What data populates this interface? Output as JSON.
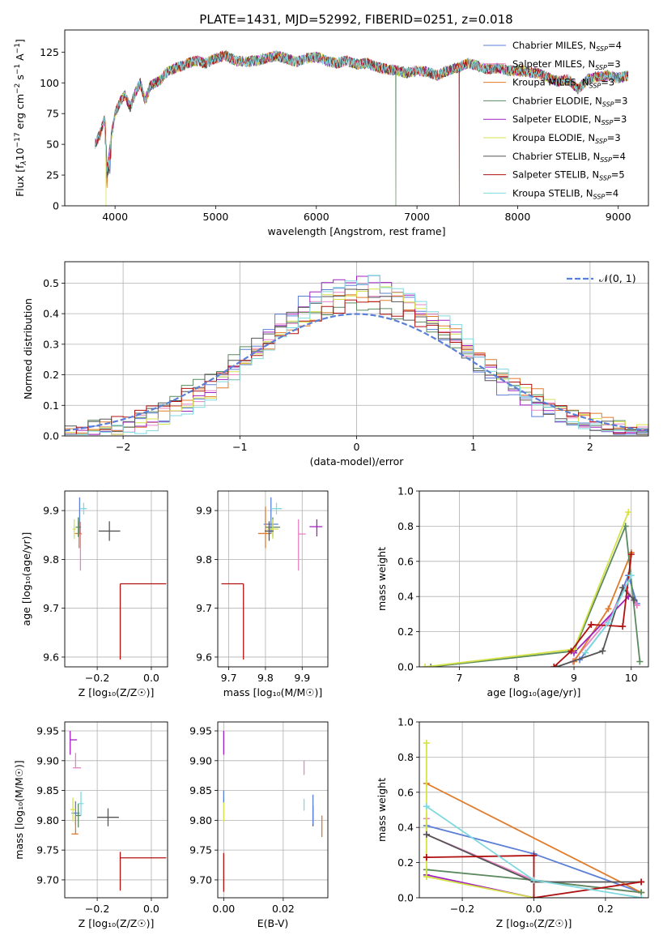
{
  "figure_title": "PLATE=1431, MJD=52992, FIBERID=0251, z=0.018",
  "colors": {
    "Chabrier MILES": "#5b7fd6",
    "Salpeter MILES": "#e882c4",
    "Kroupa MILES": "#e07b2a",
    "Chabrier ELODIE": "#5a8a5e",
    "Salpeter ELODIE": "#a020c0",
    "Kroupa ELODIE": "#d6e24a",
    "Chabrier STELIB": "#555555",
    "Salpeter STELIB": "#b01010",
    "Kroupa STELIB": "#7fd9e0",
    "normal": "#5b7fd6"
  },
  "chart_data": [
    {
      "id": "spectrum",
      "type": "line",
      "xlabel": "wavelength [Angstrom, rest frame]",
      "ylabel": "Flux [f",
      "ylabel_parts": [
        "Flux [f",
        "λ",
        "10",
        "−17",
        " erg cm",
        "−2",
        " s",
        "−1",
        " A",
        "−1",
        "]"
      ],
      "xlim": [
        3500,
        9300
      ],
      "ylim": [
        0,
        143
      ],
      "xticks": [
        4000,
        5000,
        6000,
        7000,
        8000,
        9000
      ],
      "yticks": [
        0,
        25,
        50,
        75,
        100,
        125
      ],
      "legend_loc": "upper right",
      "legend": [
        {
          "base": "Chabrier MILES, N",
          "sub": "SSP",
          "tail": "=4"
        },
        {
          "base": "Salpeter MILES, N",
          "sub": "SSP",
          "tail": "=3"
        },
        {
          "base": "Kroupa MILES, N",
          "sub": "SSP",
          "tail": "=3"
        },
        {
          "base": "Chabrier ELODIE, N",
          "sub": "SSP",
          "tail": "=3"
        },
        {
          "base": "Salpeter ELODIE, N",
          "sub": "SSP",
          "tail": "=3"
        },
        {
          "base": "Kroupa ELODIE, N",
          "sub": "SSP",
          "tail": "=3"
        },
        {
          "base": "Chabrier STELIB, N",
          "sub": "SSP",
          "tail": "=4"
        },
        {
          "base": "Salpeter STELIB, N",
          "sub": "SSP",
          "tail": "=5"
        },
        {
          "base": "Kroupa STELIB, N",
          "sub": "SSP",
          "tail": "=4"
        }
      ],
      "spectrum_x": [
        3800,
        3850,
        3900,
        3920,
        3950,
        4000,
        4050,
        4100,
        4150,
        4200,
        4250,
        4300,
        4350,
        4400,
        4450,
        4500,
        4600,
        4700,
        4800,
        4900,
        5000,
        5100,
        5200,
        5300,
        5400,
        5500,
        5600,
        5700,
        5800,
        5900,
        6000,
        6100,
        6200,
        6300,
        6400,
        6500,
        6600,
        6700,
        6800,
        6900,
        7000,
        7100,
        7200,
        7300,
        7400,
        7500,
        7600,
        7700,
        7800,
        7900,
        8000,
        8200,
        8400,
        8500,
        8600,
        8700,
        8800,
        8900,
        9000,
        9100
      ],
      "spectrum_y": [
        50,
        58,
        72,
        35,
        50,
        75,
        85,
        90,
        80,
        92,
        100,
        85,
        98,
        100,
        102,
        108,
        112,
        115,
        118,
        116,
        120,
        122,
        118,
        117,
        118,
        120,
        122,
        120,
        117,
        120,
        121,
        118,
        116,
        118,
        115,
        116,
        113,
        111,
        110,
        108,
        110,
        109,
        106,
        110,
        112,
        116,
        114,
        111,
        112,
        110,
        110,
        108,
        101,
        103,
        95,
        103,
        105,
        106,
        104,
        106
      ],
      "dips": [
        {
          "series": "Kroupa ELODIE",
          "x": 3910
        },
        {
          "series": "Chabrier ELODIE",
          "x": 6790
        },
        {
          "series": "Salpeter STELIB",
          "x": 7420
        }
      ]
    },
    {
      "id": "residuals",
      "type": "histogram",
      "xlabel": "(data-model)/error",
      "ylabel": "Normed distribution",
      "xlim": [
        -2.5,
        2.5
      ],
      "ylim": [
        0,
        0.57
      ],
      "xticks": [
        -2,
        -1,
        0,
        1,
        2
      ],
      "yticks": [
        0.0,
        0.1,
        0.2,
        0.3,
        0.4,
        0.5
      ],
      "legend_label": "𝒩(0, 1)",
      "bin_width": 0.1,
      "bin_start": -2.5
    },
    {
      "id": "Z_age",
      "type": "scatter",
      "xlabel": "Z [log₁₀(Z/Z☉)]",
      "ylabel": "age  [log₁₀(age/yr)]",
      "xlim": [
        -0.32,
        0.06
      ],
      "ylim": [
        9.58,
        9.94
      ],
      "xticks": [
        -0.2,
        0.0
      ],
      "xticklabels": [
        "−0.2",
        "0.0"
      ],
      "yticks": [
        9.6,
        9.7,
        9.8,
        9.9
      ],
      "points": [
        {
          "series": "Chabrier MILES",
          "x": -0.265,
          "y": 9.872,
          "xe": [
            0.005,
            0.005
          ],
          "ye": [
            0.02,
            0.055
          ]
        },
        {
          "series": "Salpeter MILES",
          "x": -0.262,
          "y": 9.852,
          "xe": [
            0.005,
            0.005
          ],
          "ye": [
            0.075,
            0.025
          ]
        },
        {
          "series": "Kroupa MILES",
          "x": -0.267,
          "y": 9.853,
          "xe": [
            0.015,
            0.008
          ],
          "ye": [
            0.03,
            0.025
          ]
        },
        {
          "series": "Chabrier ELODIE",
          "x": -0.27,
          "y": 9.866,
          "xe": [
            0.01,
            0.01
          ],
          "ye": [
            0.02,
            0.02
          ]
        },
        {
          "series": "Kroupa ELODIE",
          "x": -0.285,
          "y": 9.862,
          "xe": [
            0.006,
            0.006
          ],
          "ye": [
            0.02,
            0.02
          ]
        },
        {
          "series": "Chabrier STELIB",
          "x": -0.155,
          "y": 9.858,
          "xe": [
            0.04,
            0.04
          ],
          "ye": [
            0.02,
            0.02
          ]
        },
        {
          "series": "Salpeter STELIB",
          "x": -0.115,
          "y": 9.75,
          "xe": [
            0.0,
            0.17
          ],
          "ye": [
            0.155,
            0.0
          ]
        },
        {
          "series": "Kroupa STELIB",
          "x": -0.25,
          "y": 9.904,
          "xe": [
            0.012,
            0.012
          ],
          "ye": [
            0.012,
            0.012
          ]
        }
      ]
    },
    {
      "id": "mass_age",
      "type": "scatter",
      "xlabel": "mass [log₁₀(M/M☉)]",
      "ylabel": "",
      "xlim": [
        9.67,
        9.97
      ],
      "ylim": [
        9.58,
        9.94
      ],
      "xticks": [
        9.7,
        9.8,
        9.9
      ],
      "yticks": [
        9.6,
        9.7,
        9.8,
        9.9
      ],
      "points": [
        {
          "series": "Chabrier MILES",
          "x": 9.815,
          "y": 9.872,
          "xe": [
            0.02,
            0.02
          ],
          "ye": [
            0.02,
            0.055
          ]
        },
        {
          "series": "Salpeter MILES",
          "x": 9.89,
          "y": 9.852,
          "xe": [
            0.0,
            0.02
          ],
          "ye": [
            0.075,
            0.03
          ]
        },
        {
          "series": "Kroupa MILES",
          "x": 9.8,
          "y": 9.853,
          "xe": [
            0.02,
            0.015
          ],
          "ye": [
            0.03,
            0.055
          ]
        },
        {
          "series": "Chabrier ELODIE",
          "x": 9.82,
          "y": 9.866,
          "xe": [
            0.02,
            0.02
          ],
          "ye": [
            0.02,
            0.02
          ]
        },
        {
          "series": "Salpeter ELODIE",
          "x": 9.94,
          "y": 9.867,
          "xe": [
            0.02,
            0.015
          ],
          "ye": [
            0.02,
            0.015
          ]
        },
        {
          "series": "Kroupa ELODIE",
          "x": 9.82,
          "y": 9.862,
          "xe": [
            0.015,
            0.015
          ],
          "ye": [
            0.02,
            0.02
          ]
        },
        {
          "series": "Chabrier STELIB",
          "x": 9.81,
          "y": 9.858,
          "xe": [
            0.012,
            0.012
          ],
          "ye": [
            0.02,
            0.02
          ]
        },
        {
          "series": "Salpeter STELIB",
          "x": 9.74,
          "y": 9.75,
          "xe": [
            0.06,
            0.0
          ],
          "ye": [
            0.155,
            0.0
          ]
        },
        {
          "series": "Kroupa STELIB",
          "x": 9.83,
          "y": 9.904,
          "xe": [
            0.015,
            0.015
          ],
          "ye": [
            0.012,
            0.012
          ]
        }
      ]
    },
    {
      "id": "age_weight",
      "type": "line",
      "xlabel": "age  [log₁₀(age/yr)]",
      "ylabel": "mass weight",
      "xlim": [
        6.3,
        10.3
      ],
      "ylim": [
        0,
        1.0
      ],
      "xticks": [
        7,
        8,
        9,
        10
      ],
      "yticks": [
        0.0,
        0.2,
        0.4,
        0.6,
        0.8,
        1.0
      ],
      "series": [
        {
          "name": "Chabrier MILES",
          "x": [
            9.1,
            9.6,
            9.95,
            10.1
          ],
          "y": [
            0.04,
            0.25,
            0.52,
            0.36
          ]
        },
        {
          "name": "Salpeter MILES",
          "x": [
            8.98,
            9.6,
            9.9,
            10.1
          ],
          "y": [
            0.03,
            0.27,
            0.45,
            0.35
          ]
        },
        {
          "name": "Kroupa MILES",
          "x": [
            9.0,
            9.6,
            10.0
          ],
          "y": [
            0.03,
            0.33,
            0.65
          ]
        },
        {
          "name": "Chabrier ELODIE",
          "x": [
            6.5,
            9.0,
            9.9,
            10.15
          ],
          "y": [
            0.0,
            0.09,
            0.8,
            0.03
          ]
        },
        {
          "name": "Salpeter ELODIE",
          "x": [
            9.0,
            9.95
          ],
          "y": [
            0.08,
            0.4
          ]
        },
        {
          "name": "Kroupa ELODIE",
          "x": [
            6.4,
            9.0,
            9.95
          ],
          "y": [
            0.0,
            0.1,
            0.88
          ]
        },
        {
          "name": "Chabrier STELIB",
          "x": [
            8.7,
            9.5,
            9.85,
            10.05
          ],
          "y": [
            0.0,
            0.09,
            0.45,
            0.38
          ]
        },
        {
          "name": "Salpeter STELIB",
          "x": [
            8.65,
            8.95,
            9.3,
            9.85,
            10.0
          ],
          "y": [
            0.0,
            0.09,
            0.24,
            0.23,
            0.64
          ]
        },
        {
          "name": "Kroupa STELIB",
          "x": [
            9.2,
            9.6,
            10.0
          ],
          "y": [
            0.08,
            0.25,
            0.52
          ]
        }
      ]
    },
    {
      "id": "Z_mass",
      "type": "scatter",
      "xlabel": "Z [log₁₀(Z/Z☉)]",
      "ylabel": "mass [log₁₀(M/M☉)]",
      "xlim": [
        -0.32,
        0.06
      ],
      "ylim": [
        9.67,
        9.965
      ],
      "xticks": [
        -0.2,
        0.0
      ],
      "xticklabels": [
        "−0.2",
        "0.0"
      ],
      "yticks": [
        9.7,
        9.75,
        9.8,
        9.85,
        9.9,
        9.95
      ],
      "points": [
        {
          "series": "Chabrier MILES",
          "x": -0.28,
          "y": 9.812,
          "xe": [
            0.015,
            0.015
          ],
          "ye": [
            0.02,
            0.02
          ]
        },
        {
          "series": "Salpeter MILES",
          "x": -0.28,
          "y": 9.888,
          "xe": [
            0.01,
            0.02
          ],
          "ye": [
            0.0,
            0.025
          ]
        },
        {
          "series": "Kroupa MILES",
          "x": -0.28,
          "y": 9.777,
          "xe": [
            0.015,
            0.01
          ],
          "ye": [
            0.0,
            0.03
          ]
        },
        {
          "series": "Chabrier ELODIE",
          "x": -0.27,
          "y": 9.808,
          "xe": [
            0.01,
            0.01
          ],
          "ye": [
            0.02,
            0.02
          ]
        },
        {
          "series": "Salpeter ELODIE",
          "x": -0.3,
          "y": 9.935,
          "xe": [
            0.0,
            0.025
          ],
          "ye": [
            0.025,
            0.015
          ]
        },
        {
          "series": "Kroupa ELODIE",
          "x": -0.29,
          "y": 9.818,
          "xe": [
            0.01,
            0.01
          ],
          "ye": [
            0.02,
            0.02
          ]
        },
        {
          "series": "Chabrier STELIB",
          "x": -0.16,
          "y": 9.805,
          "xe": [
            0.04,
            0.04
          ],
          "ye": [
            0.015,
            0.015
          ]
        },
        {
          "series": "Salpeter STELIB",
          "x": -0.115,
          "y": 9.737,
          "xe": [
            0.0,
            0.17
          ],
          "ye": [
            0.055,
            0.01
          ]
        },
        {
          "series": "Kroupa STELIB",
          "x": -0.26,
          "y": 9.828,
          "xe": [
            0.01,
            0.01
          ],
          "ye": [
            0.02,
            0.02
          ]
        }
      ]
    },
    {
      "id": "ebv_mass",
      "type": "scatter",
      "xlabel": "E(B-V)",
      "ylabel": "",
      "xlim": [
        -0.002,
        0.035
      ],
      "ylim": [
        9.67,
        9.965
      ],
      "xticks": [
        0.0,
        0.02
      ],
      "xticklabels": [
        "0.00",
        "0.02"
      ],
      "yticks": [
        9.7,
        9.75,
        9.8,
        9.85,
        9.9,
        9.95
      ],
      "points": [
        {
          "series": "Salpeter ELODIE",
          "x": 0.0,
          "y": 9.935,
          "xe": [
            0,
            0
          ],
          "ye": [
            0.025,
            0.015
          ]
        },
        {
          "series": "Kroupa ELODIE",
          "x": 0.0,
          "y": 9.818,
          "xe": [
            0,
            0
          ],
          "ye": [
            0.02,
            0.02
          ]
        },
        {
          "series": "Salpeter STELIB",
          "x": 0.0,
          "y": 9.715,
          "xe": [
            0,
            0
          ],
          "ye": [
            0.035,
            0.03
          ]
        },
        {
          "series": "Chabrier MILES",
          "x": 0.0,
          "y": 9.84,
          "xe": [
            0,
            0
          ],
          "ye": [
            0.01,
            0.01
          ]
        },
        {
          "series": "Salpeter MILES",
          "x": 0.027,
          "y": 9.888,
          "xe": [
            0,
            0
          ],
          "ye": [
            0.012,
            0.012
          ]
        },
        {
          "series": "Kroupa STELIB",
          "x": 0.027,
          "y": 9.826,
          "xe": [
            0,
            0
          ],
          "ye": [
            0.01,
            0.01
          ]
        },
        {
          "series": "Chabrier STELIB",
          "x": 0.03,
          "y": 9.81,
          "xe": [
            0,
            0
          ],
          "ye": [
            0.02,
            0.015
          ]
        },
        {
          "series": "Chabrier MILES",
          "x": 0.03,
          "y": 9.818,
          "xe": [
            0,
            0
          ],
          "ye": [
            0.025,
            0.025
          ]
        },
        {
          "series": "Kroupa MILES",
          "x": 0.033,
          "y": 9.79,
          "xe": [
            0,
            0
          ],
          "ye": [
            0.018,
            0.018
          ]
        }
      ]
    },
    {
      "id": "Z_weight",
      "type": "line",
      "xlabel": "Z [log₁₀(Z/Z☉)]",
      "ylabel": "mass weight",
      "xlim": [
        -0.32,
        0.32
      ],
      "ylim": [
        0,
        1.0
      ],
      "xticks": [
        -0.2,
        0.0,
        0.2
      ],
      "xticklabels": [
        "−0.2",
        "0.0",
        "0.2"
      ],
      "yticks": [
        0.0,
        0.2,
        0.4,
        0.6,
        0.8,
        1.0
      ],
      "series": [
        {
          "name": "Chabrier MILES",
          "x": [
            -0.3,
            0.0,
            0.3
          ],
          "y": [
            0.41,
            0.25,
            0.03
          ]
        },
        {
          "name": "Salpeter MILES",
          "x": [
            -0.3,
            -0.3,
            0.0,
            0.3
          ],
          "y": [
            0.45,
            0.36,
            0.1,
            0.03
          ]
        },
        {
          "name": "Kroupa MILES",
          "x": [
            -0.3,
            0.3
          ],
          "y": [
            0.65,
            0.03
          ]
        },
        {
          "name": "Chabrier ELODIE",
          "x": [
            -0.3,
            0.0,
            0.3
          ],
          "y": [
            0.16,
            0.1,
            0.03
          ]
        },
        {
          "name": "Salpeter ELODIE",
          "x": [
            -0.3,
            0.0
          ],
          "y": [
            0.13,
            0.0
          ]
        },
        {
          "name": "Kroupa ELODIE",
          "x": [
            -0.3,
            -0.3,
            0.0
          ],
          "y": [
            0.88,
            0.12,
            0.0
          ]
        },
        {
          "name": "Chabrier STELIB",
          "x": [
            -0.3,
            0.0,
            0.3
          ],
          "y": [
            0.36,
            0.09,
            0.09
          ]
        },
        {
          "name": "Salpeter STELIB",
          "x": [
            -0.3,
            -0.3,
            0.0,
            0.0,
            0.3
          ],
          "y": [
            0.23,
            0.23,
            0.24,
            0.0,
            0.09
          ]
        },
        {
          "name": "Kroupa STELIB",
          "x": [
            -0.3,
            0.0,
            0.3
          ],
          "y": [
            0.52,
            0.1,
            0.0
          ]
        }
      ]
    }
  ]
}
